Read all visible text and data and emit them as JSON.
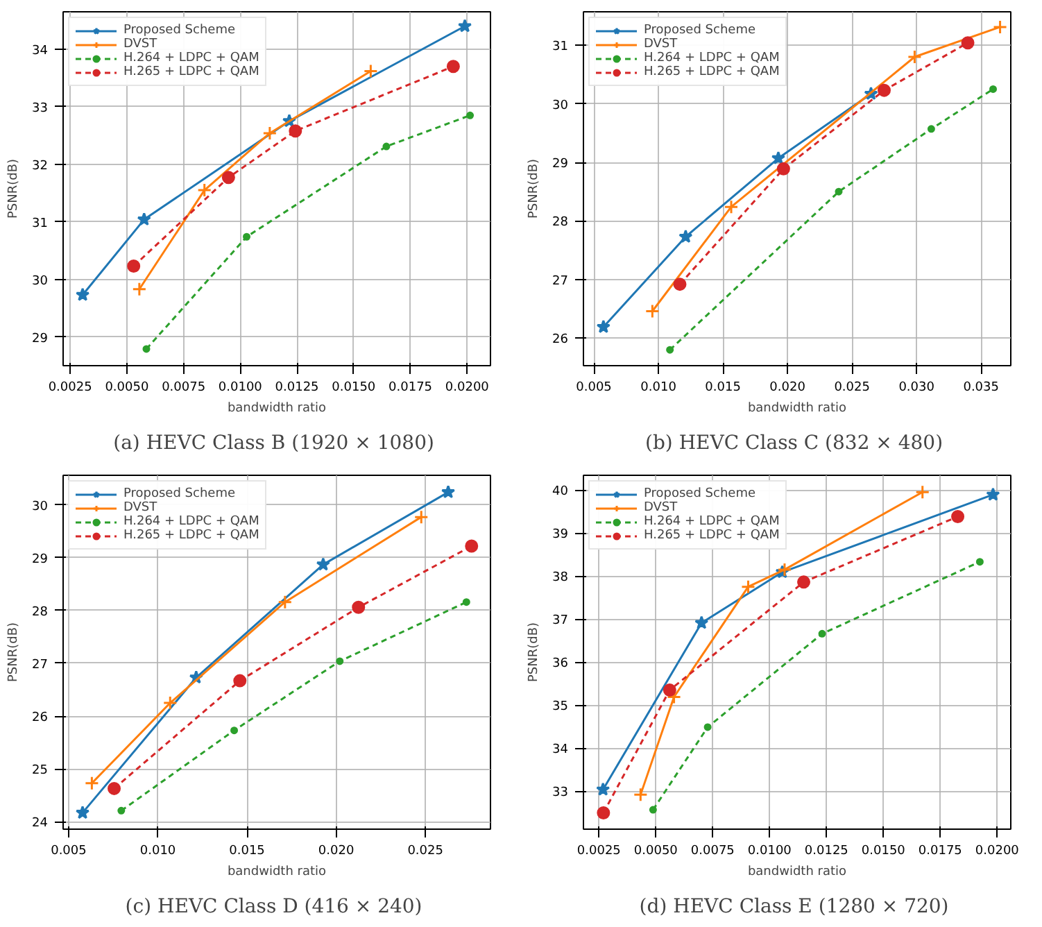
{
  "chart_data": [
    {
      "type": "line",
      "title": "(a)  HEVC Class B (1920 × 1080)",
      "xlabel": "bandwidth ratio",
      "ylabel": "PSNR(dB)",
      "xlim": [
        0.00219,
        0.02103
      ],
      "ylim": [
        28.5,
        34.65
      ],
      "xticks": [
        {
          "value": 0.0025,
          "label": "0.0025"
        },
        {
          "value": 0.005,
          "label": "0.0050"
        },
        {
          "value": 0.0075,
          "label": "0.0075"
        },
        {
          "value": 0.01,
          "label": "0.0100"
        },
        {
          "value": 0.0125,
          "label": "0.0125"
        },
        {
          "value": 0.015,
          "label": "0.0150"
        },
        {
          "value": 0.0175,
          "label": "0.0175"
        },
        {
          "value": 0.02,
          "label": "0.0200"
        }
      ],
      "yticks": [
        29,
        30,
        31,
        32,
        33,
        34
      ],
      "grid": true,
      "legend": "top left",
      "series": [
        {
          "name": "Proposed Scheme",
          "color": "#1f77b4",
          "marker": "star",
          "line_style": "solid",
          "x": [
            0.00305,
            0.00576,
            0.01216,
            0.0199
          ],
          "values": [
            29.73,
            31.04,
            32.75,
            34.4
          ]
        },
        {
          "name": "DVST",
          "color": "#ff7f0e",
          "marker": "cross",
          "line_style": "solid",
          "x": [
            0.00555,
            0.00842,
            0.0113,
            0.01575
          ],
          "values": [
            29.83,
            31.55,
            32.54,
            33.62
          ]
        },
        {
          "name": "H.264 + LDPC + QAM",
          "color": "#2ca02c",
          "marker": "dot",
          "line_style": "dashed",
          "x": [
            0.00586,
            0.01028,
            0.01644,
            0.02013
          ],
          "values": [
            28.79,
            30.74,
            32.31,
            32.85
          ]
        },
        {
          "name": "H.265 + LDPC + QAM",
          "color": "#d62728",
          "marker": "circle",
          "line_style": "dashed",
          "x": [
            0.0053,
            0.00948,
            0.01243,
            0.01939
          ],
          "values": [
            30.23,
            31.77,
            32.58,
            33.7
          ]
        }
      ]
    },
    {
      "type": "line",
      "title": "(b)  HEVC Class C (832 × 480)",
      "xlabel": "bandwidth ratio",
      "ylabel": "PSNR(dB)",
      "xlim": [
        0.00419,
        0.0373
      ],
      "ylim": [
        25.53,
        31.57
      ],
      "xticks": [
        {
          "value": 0.005,
          "label": "0.005"
        },
        {
          "value": 0.01,
          "label": "0.010"
        },
        {
          "value": 0.015,
          "label": "0.015"
        },
        {
          "value": 0.02,
          "label": "0.020"
        },
        {
          "value": 0.025,
          "label": "0.025"
        },
        {
          "value": 0.03,
          "label": "0.030"
        },
        {
          "value": 0.035,
          "label": "0.035"
        }
      ],
      "yticks": [
        26,
        27,
        28,
        29,
        30,
        31
      ],
      "grid": true,
      "legend": "top left",
      "series": [
        {
          "name": "Proposed Scheme",
          "color": "#1f77b4",
          "marker": "star",
          "line_style": "solid",
          "x": [
            0.00574,
            0.01211,
            0.01929,
            0.02647
          ],
          "values": [
            26.19,
            27.73,
            29.07,
            30.17
          ]
        },
        {
          "name": "DVST",
          "color": "#ff7f0e",
          "marker": "cross",
          "line_style": "solid",
          "x": [
            0.00953,
            0.01564,
            0.02985,
            0.03647
          ],
          "values": [
            26.46,
            28.24,
            30.8,
            31.31
          ]
        },
        {
          "name": "H.264 + LDPC + QAM",
          "color": "#2ca02c",
          "marker": "dot",
          "line_style": "dashed",
          "x": [
            0.01089,
            0.02397,
            0.03114,
            0.03593
          ],
          "values": [
            25.8,
            28.5,
            29.57,
            30.25
          ]
        },
        {
          "name": "H.265 + LDPC + QAM",
          "color": "#d62728",
          "marker": "circle",
          "line_style": "dashed",
          "x": [
            0.01166,
            0.01969,
            0.02749,
            0.03397
          ],
          "values": [
            26.92,
            28.89,
            30.23,
            31.04
          ]
        }
      ]
    },
    {
      "type": "line",
      "title": "(c)  HEVC Class D (416 × 240)",
      "xlabel": "bandwidth ratio",
      "ylabel": "PSNR(dB)",
      "xlim": [
        0.00469,
        0.02865
      ],
      "ylim": [
        23.86,
        30.56
      ],
      "xticks": [
        {
          "value": 0.005,
          "label": "0.005"
        },
        {
          "value": 0.01,
          "label": "0.010"
        },
        {
          "value": 0.015,
          "label": "0.015"
        },
        {
          "value": 0.02,
          "label": "0.020"
        },
        {
          "value": 0.025,
          "label": "0.025"
        }
      ],
      "yticks": [
        24,
        25,
        26,
        27,
        28,
        29,
        30
      ],
      "grid": true,
      "legend": "top left",
      "series": [
        {
          "name": "Proposed Scheme",
          "color": "#1f77b4",
          "marker": "star",
          "line_style": "solid",
          "x": [
            0.00578,
            0.01215,
            0.01927,
            0.02628
          ],
          "values": [
            24.17,
            26.73,
            28.87,
            30.24
          ]
        },
        {
          "name": "DVST",
          "color": "#ff7f0e",
          "marker": "cross",
          "line_style": "solid",
          "x": [
            0.0063,
            0.01069,
            0.01713,
            0.02477
          ],
          "values": [
            24.73,
            26.25,
            28.16,
            29.77
          ]
        },
        {
          "name": "H.264 + LDPC + QAM",
          "color": "#2ca02c",
          "marker": "dot",
          "line_style": "dashed",
          "x": [
            0.00795,
            0.01428,
            0.0202,
            0.0273
          ],
          "values": [
            24.21,
            25.73,
            27.04,
            28.16
          ]
        },
        {
          "name": "H.265 + LDPC + QAM",
          "color": "#d62728",
          "marker": "circle",
          "line_style": "dashed",
          "x": [
            0.00755,
            0.0146,
            0.02125,
            0.02759
          ],
          "values": [
            24.63,
            26.67,
            28.06,
            29.22
          ]
        }
      ]
    },
    {
      "type": "line",
      "title": "(d)  HEVC Class E (1280 × 720)",
      "xlabel": "bandwidth ratio",
      "ylabel": "PSNR(dB)",
      "xlim": [
        0.00182,
        0.0206
      ],
      "ylim": [
        32.12,
        40.34
      ],
      "xticks": [
        {
          "value": 0.0025,
          "label": "0.0025"
        },
        {
          "value": 0.005,
          "label": "0.0050"
        },
        {
          "value": 0.0075,
          "label": "0.0075"
        },
        {
          "value": 0.01,
          "label": "0.0100"
        },
        {
          "value": 0.0125,
          "label": "0.0125"
        },
        {
          "value": 0.015,
          "label": "0.0150"
        },
        {
          "value": 0.0175,
          "label": "0.0175"
        },
        {
          "value": 0.02,
          "label": "0.0200"
        }
      ],
      "yticks": [
        33,
        34,
        35,
        36,
        37,
        38,
        39,
        40
      ],
      "grid": true,
      "legend": "top left",
      "series": [
        {
          "name": "Proposed Scheme",
          "color": "#1f77b4",
          "marker": "star",
          "line_style": "solid",
          "x": [
            0.00268,
            0.00701,
            0.01056,
            0.01982
          ],
          "values": [
            33.04,
            36.91,
            38.09,
            39.89
          ]
        },
        {
          "name": "DVST",
          "color": "#ff7f0e",
          "marker": "cross",
          "line_style": "solid",
          "x": [
            0.00433,
            0.0058,
            0.00906,
            0.01066,
            0.01672
          ],
          "values": [
            32.92,
            35.19,
            37.75,
            38.15,
            39.95
          ]
        },
        {
          "name": "H.264 + LDPC + QAM",
          "color": "#2ca02c",
          "marker": "dot",
          "line_style": "dashed",
          "x": [
            0.00488,
            0.00728,
            0.01231,
            0.01924
          ],
          "values": [
            32.57,
            34.49,
            36.66,
            38.33
          ]
        },
        {
          "name": "H.265 + LDPC + QAM",
          "color": "#d62728",
          "marker": "circle",
          "line_style": "dashed",
          "x": [
            0.0027,
            0.00561,
            0.0115,
            0.01827
          ],
          "values": [
            32.5,
            35.35,
            37.86,
            39.38
          ]
        }
      ]
    }
  ]
}
